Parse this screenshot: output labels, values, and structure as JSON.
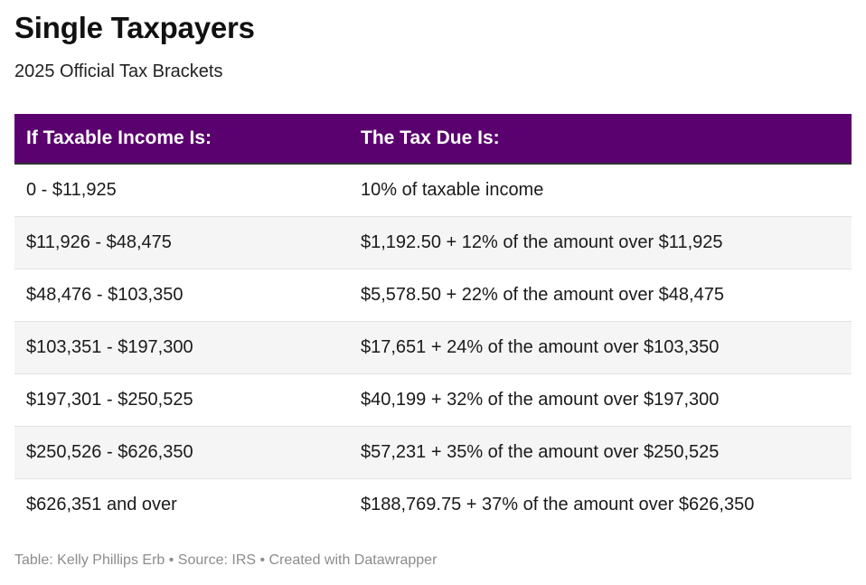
{
  "title": "Single Taxpayers",
  "subtitle": "2025 Official Tax Brackets",
  "table": {
    "headers": [
      "If Taxable Income Is:",
      "The Tax Due Is:"
    ],
    "header_color": "#5b006f",
    "rows": [
      [
        "0 - $11,925",
        "10% of taxable income"
      ],
      [
        "$11,926 - $48,475",
        "$1,192.50 + 12% of the amount over $11,925"
      ],
      [
        "$48,476 - $103,350",
        "$5,578.50 + 22% of the amount over $48,475"
      ],
      [
        "$103,351 - $197,300",
        "$17,651 + 24% of the amount over $103,350"
      ],
      [
        "$197,301 - $250,525",
        "$40,199 + 32% of the amount over $197,300"
      ],
      [
        "$250,526 - $626,350",
        "$57,231 + 35% of the amount over $250,525"
      ],
      [
        "$626,351 and over",
        "$188,769.75 + 37% of the amount over $626,350"
      ]
    ]
  },
  "footer": "Table: Kelly Phillips Erb • Source: IRS • Created with Datawrapper"
}
